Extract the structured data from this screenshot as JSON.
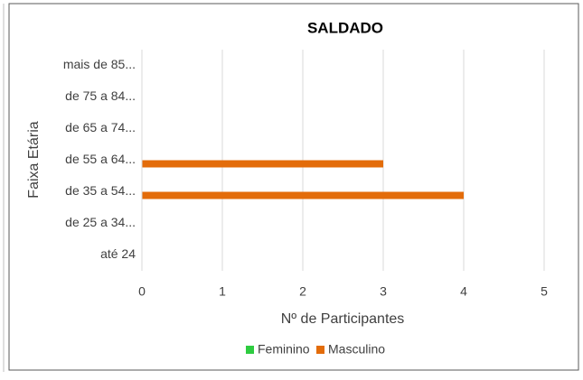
{
  "chart_data": {
    "type": "hbar",
    "title": "SALDADO",
    "x_label": "Nº de Participantes",
    "y_label": "Faixa Etária",
    "categories": [
      "até 24",
      "de 25 a 34...",
      "de 35 a 54...",
      "de 55 a 64...",
      "de 65 a 74...",
      "de 75 a 84...",
      "mais de 85..."
    ],
    "series": [
      {
        "name": "Feminino",
        "color": "#2ecc40",
        "values": [
          0,
          0,
          0,
          0,
          0,
          0,
          0
        ]
      },
      {
        "name": "Masculino",
        "color": "#e36c0a",
        "values": [
          0,
          0,
          4,
          3,
          0,
          0,
          0
        ]
      }
    ],
    "xlim": [
      0,
      5
    ],
    "xticks": [
      0,
      1,
      2,
      3,
      4,
      5
    ],
    "grid": true,
    "legend": "bottom"
  }
}
